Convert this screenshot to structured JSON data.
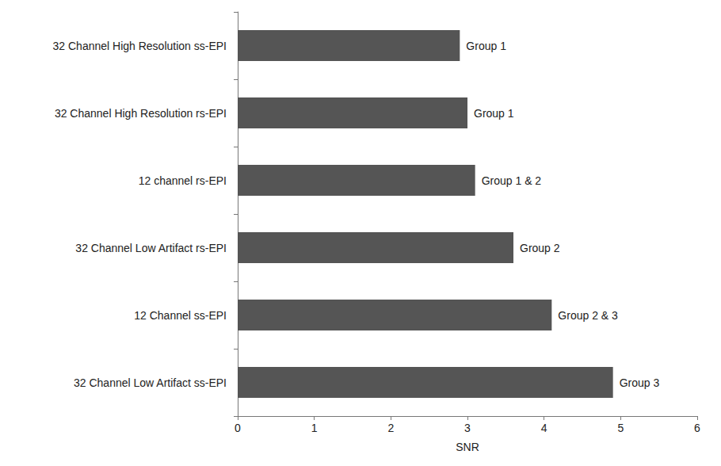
{
  "chart_data": {
    "type": "bar",
    "orientation": "horizontal",
    "categories": [
      "32 Channel High Resolution ss-EPI",
      "32 Channel High Resolution rs-EPI",
      "12 channel rs-EPI",
      "32 Channel Low Artifact rs-EPI",
      "12 Channel ss-EPI",
      "32 Channel Low Artifact ss-EPI"
    ],
    "values": [
      2.9,
      3.0,
      3.1,
      3.6,
      4.1,
      4.9
    ],
    "annotations": [
      "Group 1",
      "Group 1",
      "Group 1 & 2",
      "Group 2",
      "Group 2 & 3",
      "Group 3"
    ],
    "color": "#555555",
    "x_label": "SNR",
    "xlim": [
      0,
      6
    ],
    "xticks": [
      0,
      1,
      2,
      3,
      4,
      5,
      6
    ],
    "grid": false
  }
}
